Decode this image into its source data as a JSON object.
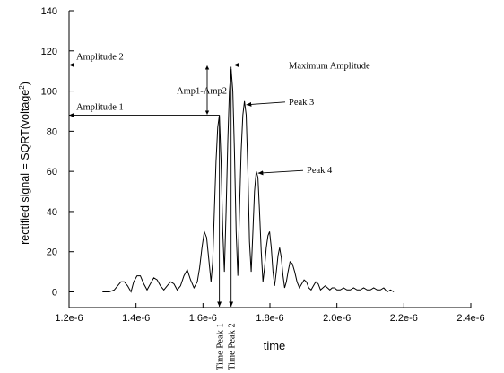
{
  "chart_data": {
    "type": "line",
    "xlabel": "time",
    "ylabel_parts": [
      "rectified signal  =  SQRT(voltage",
      "2",
      ")"
    ],
    "xlim": [
      1.2e-06,
      2.4e-06
    ],
    "ylim": [
      -12,
      140
    ],
    "xtick_values": [
      1.2e-06,
      1.4e-06,
      1.6e-06,
      1.8e-06,
      2e-06,
      2.2e-06,
      2.4e-06
    ],
    "xtick_labels": [
      "1.2e-6",
      "1.4e-6",
      "1.6e-6",
      "1.8e-6",
      "2.0e-6",
      "2.2e-6",
      "2.4e-6"
    ],
    "ytick_values": [
      0,
      20,
      40,
      60,
      80,
      100,
      120,
      140
    ],
    "ytick_labels": [
      "0",
      "20",
      "40",
      "60",
      "80",
      "100",
      "120",
      "140"
    ],
    "grid": false,
    "series": [
      {
        "x": [
          1.3e-06,
          1.32e-06,
          1.335e-06,
          1.345e-06,
          1.355e-06,
          1.365e-06,
          1.375e-06,
          1.385e-06,
          1.393e-06,
          1.403e-06,
          1.413e-06,
          1.423e-06,
          1.433e-06,
          1.443e-06,
          1.453e-06,
          1.463e-06,
          1.473e-06,
          1.483e-06,
          1.493e-06,
          1.503e-06,
          1.513e-06,
          1.523e-06,
          1.533e-06,
          1.543e-06,
          1.553e-06,
          1.563e-06,
          1.573e-06,
          1.583e-06,
          1.59e-06,
          1.597e-06,
          1.604e-06,
          1.611e-06,
          1.618e-06,
          1.624e-06,
          1.629e-06,
          1.634e-06,
          1.639e-06,
          1.644e-06,
          1.649e-06,
          1.654e-06,
          1.659e-06,
          1.664e-06,
          1.669e-06,
          1.674e-06,
          1.679e-06,
          1.684e-06,
          1.689e-06,
          1.694e-06,
          1.699e-06,
          1.704e-06,
          1.709e-06,
          1.714e-06,
          1.719e-06,
          1.724e-06,
          1.729e-06,
          1.734e-06,
          1.739e-06,
          1.744e-06,
          1.749e-06,
          1.754e-06,
          1.759e-06,
          1.764e-06,
          1.769e-06,
          1.774e-06,
          1.779e-06,
          1.784e-06,
          1.789e-06,
          1.794e-06,
          1.799e-06,
          1.804e-06,
          1.809e-06,
          1.814e-06,
          1.819e-06,
          1.824e-06,
          1.829e-06,
          1.834e-06,
          1.839e-06,
          1.844e-06,
          1.849e-06,
          1.854e-06,
          1.86e-06,
          1.867e-06,
          1.874e-06,
          1.881e-06,
          1.888e-06,
          1.895e-06,
          1.902e-06,
          1.909e-06,
          1.916e-06,
          1.923e-06,
          1.93e-06,
          1.937e-06,
          1.944e-06,
          1.951e-06,
          1.958e-06,
          1.965e-06,
          1.972e-06,
          1.979e-06,
          1.986e-06,
          1.993e-06,
          2e-06,
          2.01e-06,
          2.02e-06,
          2.03e-06,
          2.04e-06,
          2.05e-06,
          2.06e-06,
          2.07e-06,
          2.08e-06,
          2.09e-06,
          2.1e-06,
          2.11e-06,
          2.12e-06,
          2.13e-06,
          2.14e-06,
          2.15e-06,
          2.16e-06,
          2.17e-06
        ],
        "y": [
          0,
          0,
          1,
          3,
          5,
          5,
          3,
          0,
          5,
          8,
          8,
          4,
          1,
          4,
          7,
          6,
          3,
          1,
          3,
          5,
          4,
          1,
          3,
          8,
          11,
          6,
          2,
          5,
          12,
          22,
          30,
          27,
          15,
          5,
          15,
          40,
          65,
          82,
          88,
          65,
          30,
          10,
          40,
          75,
          100,
          111,
          100,
          70,
          30,
          8,
          40,
          70,
          88,
          95,
          88,
          60,
          25,
          10,
          30,
          50,
          60,
          57,
          40,
          20,
          5,
          12,
          22,
          28,
          30,
          22,
          10,
          3,
          10,
          18,
          22,
          17,
          8,
          2,
          5,
          10,
          15,
          14,
          10,
          5,
          2,
          4,
          6,
          5,
          2,
          1,
          3,
          5,
          4,
          1,
          2,
          3,
          2,
          1,
          2,
          2,
          1,
          1,
          2,
          1,
          1,
          2,
          1,
          1,
          2,
          1,
          1,
          2,
          1,
          1,
          2,
          0,
          1,
          0
        ]
      }
    ],
    "annotations": {
      "amplitude_2": {
        "label": "Amplitude 2",
        "y": 113
      },
      "amplitude_1": {
        "label": "Amplitude 1",
        "y": 88
      },
      "amp_diff": {
        "label": "Amp1-Amp2"
      },
      "maximum_amplitude": {
        "label": "Maximum Amplitude",
        "x": 1.684e-06,
        "y": 113
      },
      "peak_3": {
        "label": "Peak 3",
        "x": 1.724e-06,
        "y": 95
      },
      "peak_4": {
        "label": "Peak 4",
        "x": 1.759e-06,
        "y": 60
      },
      "time_peak_1": {
        "label": "Time Peak 1",
        "x": 1.649e-06
      },
      "time_peak_2": {
        "label": "Time Peak 2",
        "x": 1.684e-06
      }
    }
  }
}
